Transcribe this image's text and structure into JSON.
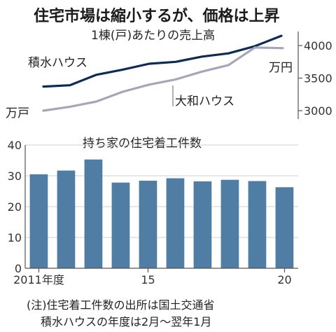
{
  "title": "住宅市場は縮小するが、価格は上昇",
  "notes": [
    "(注)住宅着工件数の出所は国土交通省",
    "積水ハウスの年度は2月～翌年1月"
  ],
  "chart_data": [
    {
      "type": "line",
      "title": "1棟(戸)あたりの売上高",
      "unit_right": "万円",
      "unit_left": "万戸",
      "x": [
        2011,
        2012,
        2013,
        2014,
        2015,
        2016,
        2017,
        2018,
        2019,
        2020
      ],
      "ylim": [
        2900,
        4200
      ],
      "yticks": [
        3000,
        3500,
        4000
      ],
      "grid": false,
      "series": [
        {
          "name": "積水ハウス",
          "color": "#0f2a55",
          "values": [
            3370,
            3390,
            3550,
            3630,
            3720,
            3750,
            3830,
            3880,
            3990,
            4150
          ]
        },
        {
          "name": "大和ハウス",
          "color": "#a6a6ba",
          "values": [
            3000,
            3060,
            3140,
            3290,
            3400,
            3480,
            3600,
            3700,
            3970,
            3960
          ]
        }
      ]
    },
    {
      "type": "bar",
      "title": "持ち家の住宅着工件数",
      "x": [
        2011,
        2012,
        2013,
        2014,
        2015,
        2016,
        2017,
        2018,
        2019,
        2020
      ],
      "xtick_labels": [
        {
          "x": 2011,
          "label": "2011年度"
        },
        {
          "x": 2015,
          "label": "15"
        },
        {
          "x": 2020,
          "label": "20"
        }
      ],
      "values": [
        30.5,
        31.7,
        35.3,
        27.8,
        28.4,
        29.2,
        28.2,
        28.7,
        28.3,
        26.3
      ],
      "ylim": [
        0,
        40
      ],
      "yticks": [
        0,
        10,
        20,
        30,
        40
      ],
      "grid": true,
      "color": "#4f7da3"
    }
  ]
}
